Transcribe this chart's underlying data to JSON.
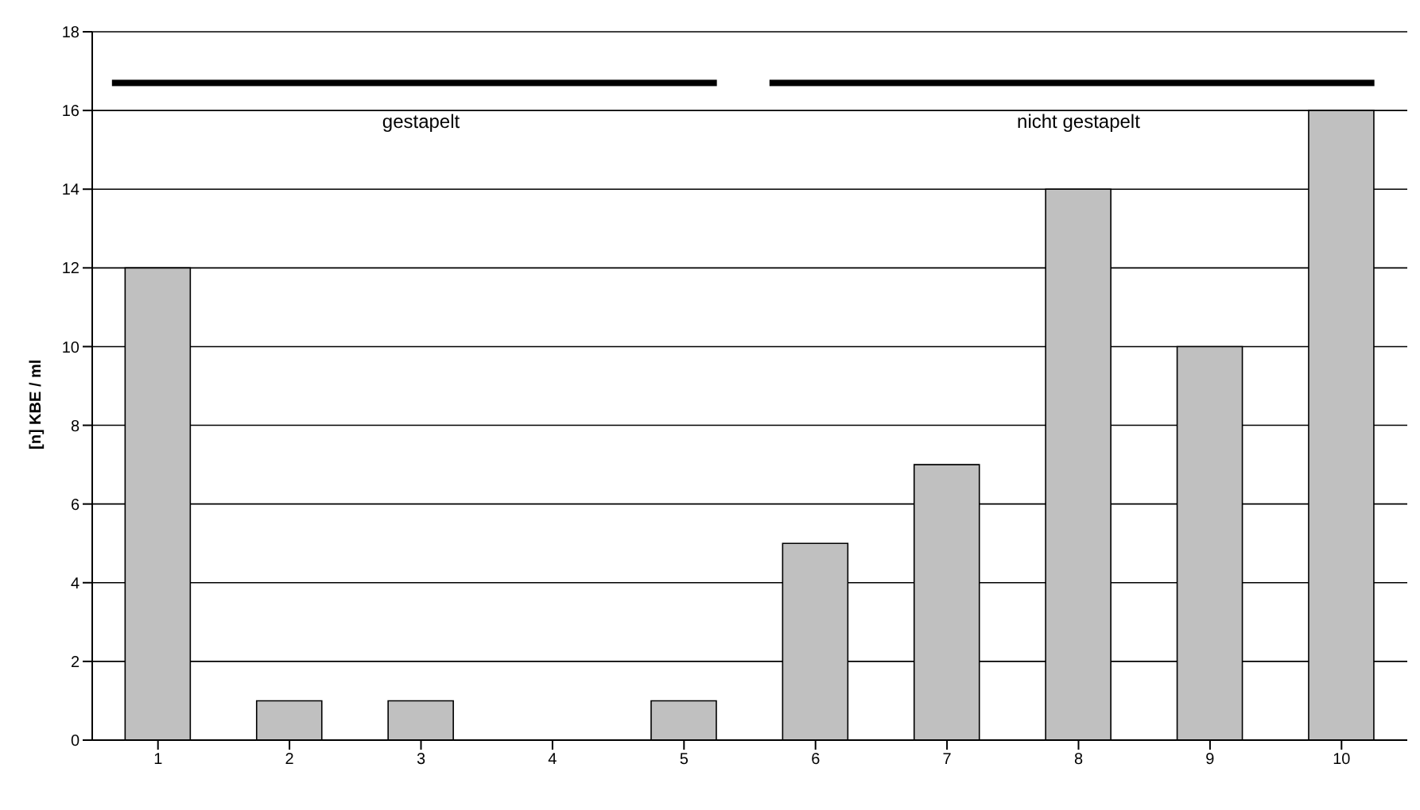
{
  "chart_data": {
    "type": "bar",
    "ylabel": "[n] KBE / ml",
    "categories": [
      "1",
      "2",
      "3",
      "4",
      "5",
      "6",
      "7",
      "8",
      "9",
      "10"
    ],
    "values": [
      12,
      1,
      1,
      0,
      1,
      5,
      7,
      14,
      10,
      16
    ],
    "color": "#c0c0c0",
    "ylim": [
      0,
      18
    ],
    "yticks": [
      0,
      2,
      4,
      6,
      8,
      10,
      12,
      14,
      16,
      18
    ],
    "grid": "y",
    "annotations": [
      "gestapelt",
      "nicht gestapelt"
    ]
  }
}
